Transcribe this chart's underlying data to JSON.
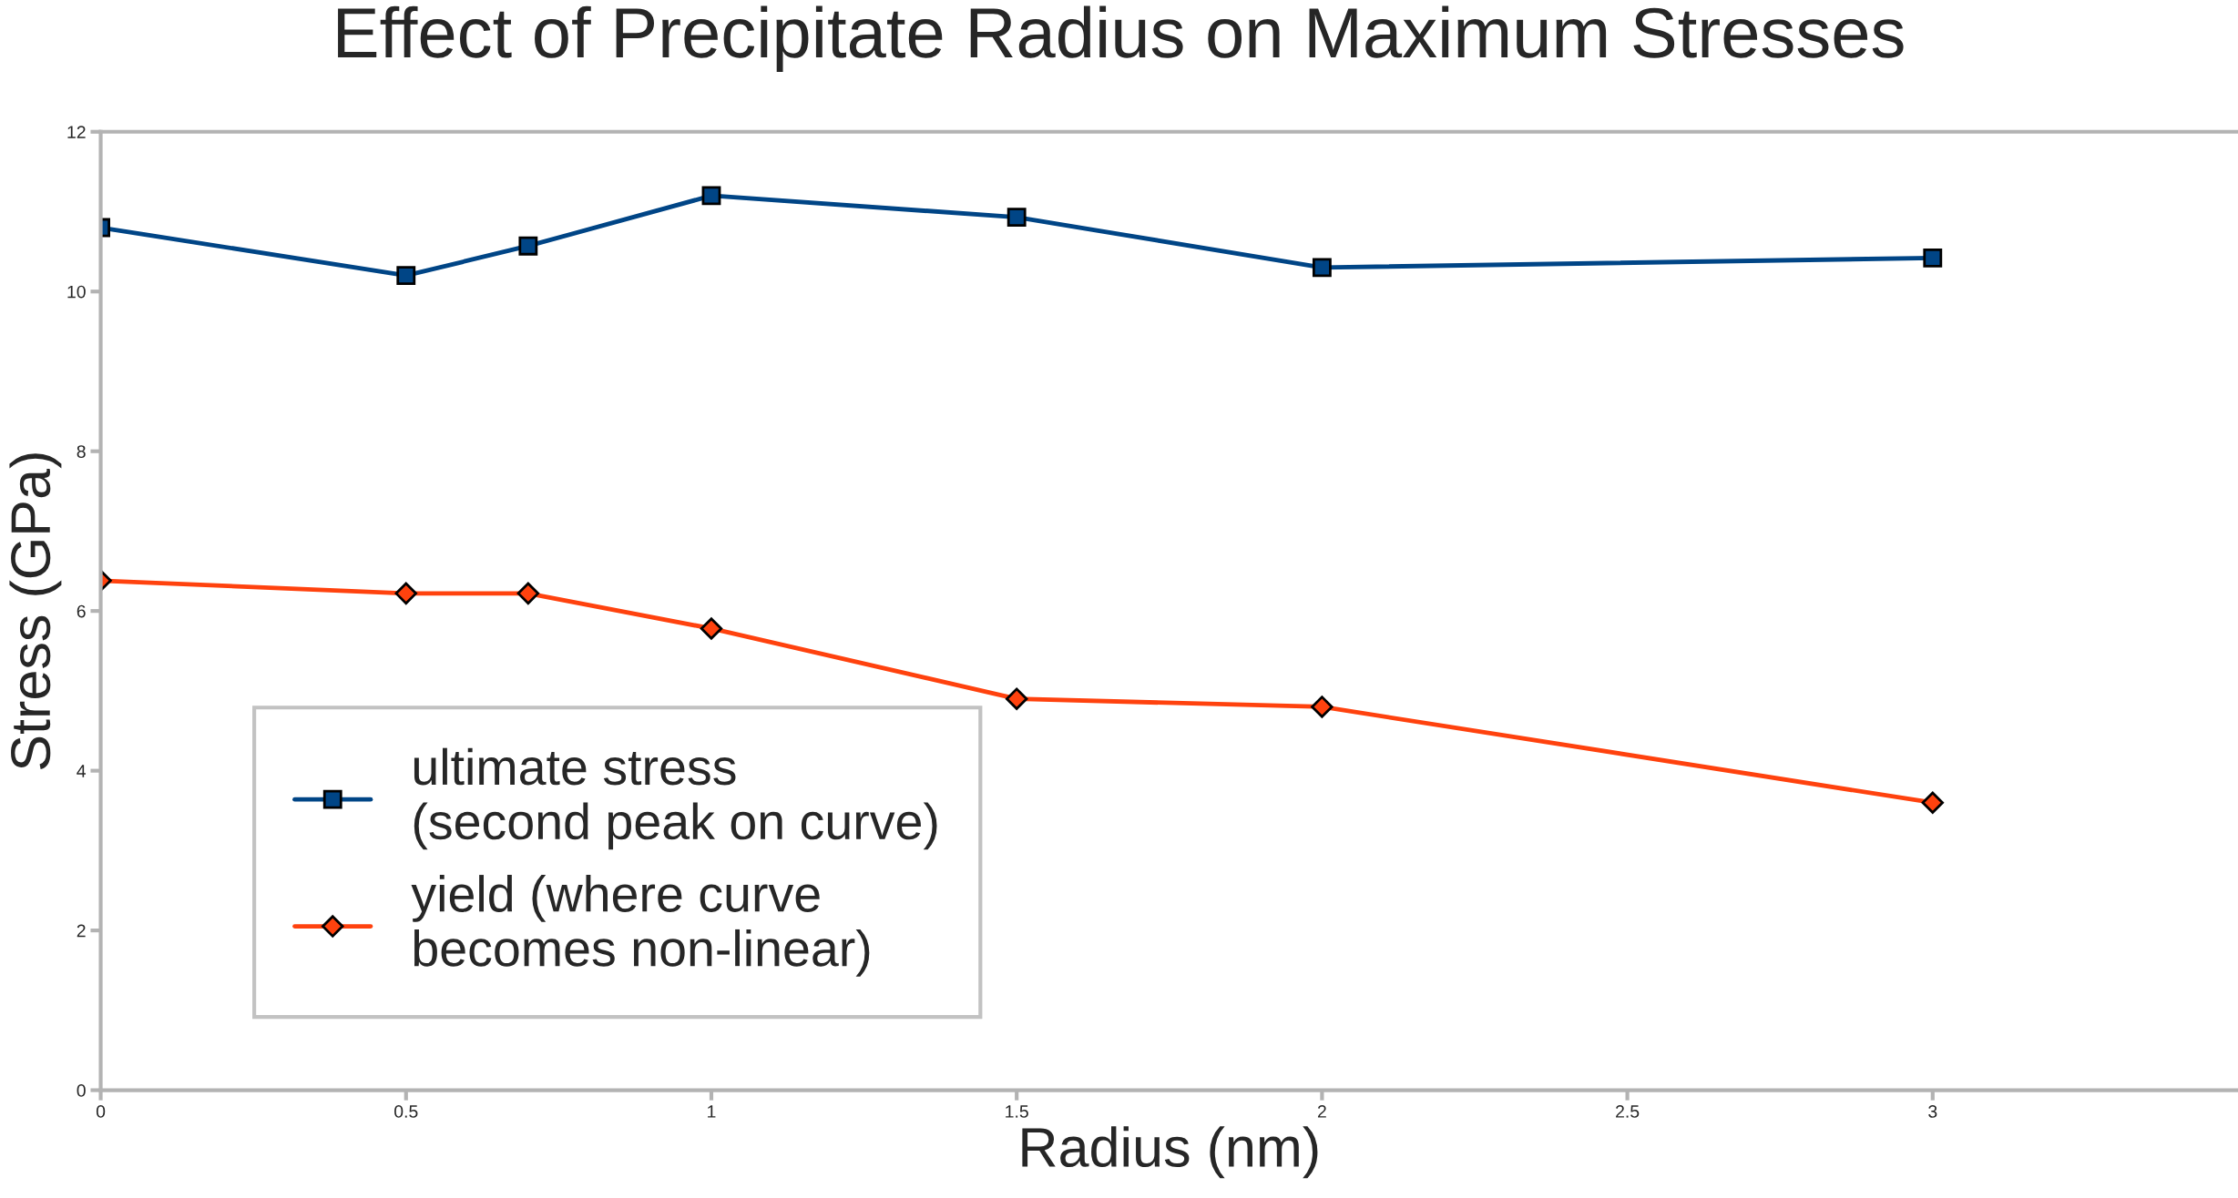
{
  "chart_data": {
    "type": "line",
    "title": "Effect of Precipitate Radius on Maximum Stresses",
    "xlabel": "Radius (nm)",
    "ylabel": "Stress (GPa)",
    "x": [
      0,
      0.5,
      0.7,
      1,
      1.5,
      2,
      3
    ],
    "series": [
      {
        "name": "ultimate stress\n(second peak on curve)",
        "color": "#004586",
        "marker": "square",
        "values": [
          10.8,
          10.2,
          10.57,
          11.2,
          10.93,
          10.3,
          10.42
        ]
      },
      {
        "name": "yield (where curve\nbecomes non-linear)",
        "color": "#ff420e",
        "marker": "diamond",
        "values": [
          6.38,
          6.22,
          6.22,
          5.78,
          4.9,
          4.8,
          3.6
        ]
      }
    ],
    "xlim": [
      0,
      3.5
    ],
    "xticks": [
      0,
      0.5,
      1,
      1.5,
      2,
      2.5,
      3
    ],
    "ylim": [
      0,
      12
    ],
    "yticks": [
      0,
      2,
      4,
      6,
      8,
      10,
      12
    ],
    "grid": false,
    "legend": "bottom left",
    "line_style": "solid"
  }
}
